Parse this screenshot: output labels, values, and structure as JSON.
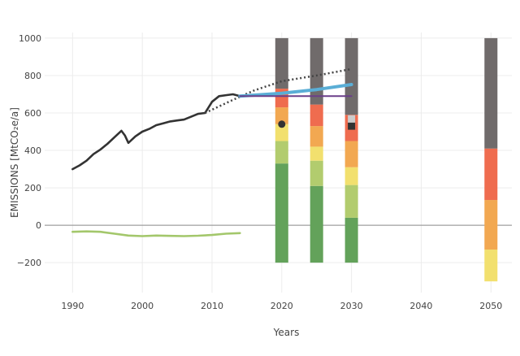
{
  "chart_data": {
    "type": "line",
    "xlabel": "Years",
    "ylabel": "EMISSIONS [MtCO₂e/a]",
    "xlim": [
      1986,
      2053
    ],
    "ylim": [
      -360,
      1030
    ],
    "x_ticks": [
      1990,
      2000,
      2010,
      2020,
      2030,
      2040,
      2050
    ],
    "y_ticks": [
      -200,
      0,
      200,
      400,
      600,
      800,
      1000
    ],
    "x_tick_labels": [
      "1990",
      "2000",
      "2010",
      "2020",
      "2030",
      "2040",
      "2050"
    ],
    "y_tick_labels": [
      "−200",
      "0",
      "200",
      "400",
      "600",
      "800",
      "1000"
    ],
    "grid": true,
    "zero_line": true,
    "colors": {
      "historical": "#333333",
      "sink": "#a3c76b",
      "trend_dotted": "#444444",
      "blue_path": "#5aaed6",
      "purple_path": "#6b3f8a",
      "marker": "#333333",
      "square_light": "#cccccc",
      "band_green": "#63a25a",
      "band_lightgreen": "#b2cc6e",
      "band_yellow": "#f2e06e",
      "band_orange": "#f2a851",
      "band_red": "#ef6c4f",
      "band_gray": "#706b6b"
    },
    "lines": [
      {
        "id": "historical",
        "style": "solid",
        "x": [
          1990,
          1991,
          1992,
          1993,
          1994,
          1995,
          1996,
          1997,
          1997.5,
          1998,
          1999,
          2000,
          2001,
          2002,
          2003,
          2004,
          2005,
          2006,
          2007,
          2008,
          2009,
          2010,
          2011,
          2012,
          2013,
          2014
        ],
        "y": [
          300,
          320,
          345,
          380,
          405,
          435,
          470,
          505,
          480,
          440,
          475,
          500,
          515,
          535,
          545,
          555,
          560,
          565,
          580,
          595,
          600,
          660,
          690,
          695,
          700,
          690
        ]
      },
      {
        "id": "sink",
        "style": "solid",
        "x": [
          1990,
          1992,
          1994,
          1996,
          1998,
          2000,
          2002,
          2004,
          2006,
          2008,
          2010,
          2012,
          2014
        ],
        "y": [
          -35,
          -33,
          -35,
          -45,
          -55,
          -58,
          -55,
          -57,
          -58,
          -56,
          -52,
          -45,
          -42
        ]
      },
      {
        "id": "trend-dotted",
        "style": "dotted",
        "x": [
          2009,
          2013,
          2016,
          2020,
          2025,
          2030
        ],
        "y": [
          600,
          670,
          720,
          770,
          800,
          835
        ]
      },
      {
        "id": "blue-path",
        "style": "thick",
        "x": [
          2014,
          2020,
          2025,
          2030
        ],
        "y": [
          690,
          705,
          725,
          752
        ]
      },
      {
        "id": "purple-path",
        "style": "solid",
        "x": [
          2014,
          2020,
          2030
        ],
        "y": [
          690,
          690,
          690
        ]
      }
    ],
    "bars": [
      {
        "x": 2020,
        "segments": [
          {
            "color": "band_green",
            "from": -200,
            "to": 330
          },
          {
            "color": "band_lightgreen",
            "from": 330,
            "to": 450
          },
          {
            "color": "band_yellow",
            "from": 450,
            "to": 540
          },
          {
            "color": "band_orange",
            "from": 540,
            "to": 630
          },
          {
            "color": "band_red",
            "from": 630,
            "to": 730
          },
          {
            "color": "band_gray",
            "from": 730,
            "to": 1000
          }
        ]
      },
      {
        "x": 2025,
        "segments": [
          {
            "color": "band_green",
            "from": -200,
            "to": 210
          },
          {
            "color": "band_lightgreen",
            "from": 210,
            "to": 345
          },
          {
            "color": "band_yellow",
            "from": 345,
            "to": 420
          },
          {
            "color": "band_orange",
            "from": 420,
            "to": 530
          },
          {
            "color": "band_red",
            "from": 530,
            "to": 645
          },
          {
            "color": "band_gray",
            "from": 645,
            "to": 1000
          }
        ]
      },
      {
        "x": 2030,
        "segments": [
          {
            "color": "band_green",
            "from": -200,
            "to": 40
          },
          {
            "color": "band_lightgreen",
            "from": 40,
            "to": 215
          },
          {
            "color": "band_yellow",
            "from": 215,
            "to": 310
          },
          {
            "color": "band_orange",
            "from": 310,
            "to": 450
          },
          {
            "color": "band_red",
            "from": 450,
            "to": 590
          },
          {
            "color": "band_gray",
            "from": 590,
            "to": 1000
          }
        ]
      },
      {
        "x": 2050,
        "segments": [
          {
            "color": "band_yellow",
            "from": -300,
            "to": -130
          },
          {
            "color": "band_orange",
            "from": -130,
            "to": 135
          },
          {
            "color": "band_red",
            "from": 135,
            "to": 410
          },
          {
            "color": "band_gray",
            "from": 410,
            "to": 1000
          }
        ]
      }
    ],
    "markers": [
      {
        "shape": "circle",
        "x": 2020,
        "y": 540,
        "color": "marker"
      },
      {
        "shape": "square",
        "x": 2030,
        "y": 530,
        "color": "marker"
      },
      {
        "shape": "square",
        "x": 2030,
        "y": 568,
        "color": "square_light"
      }
    ]
  }
}
